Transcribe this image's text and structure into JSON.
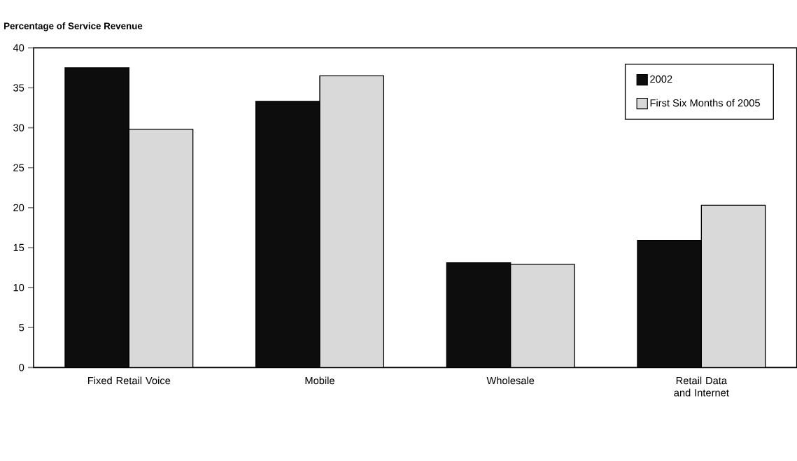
{
  "chart_data": {
    "type": "bar",
    "ylabel": "Percentage of Service Revenue",
    "categories": [
      "Fixed Retail Voice",
      "Mobile",
      "Wholesale",
      "Retail Data and Internet"
    ],
    "series": [
      {
        "name": "2002",
        "color": "#0d0d0d",
        "values": [
          37.5,
          33.3,
          13.1,
          15.9
        ]
      },
      {
        "name": "First Six Months of 2005",
        "color": "#d9d9d9",
        "values": [
          29.8,
          36.5,
          12.9,
          20.3
        ]
      }
    ],
    "ylim": [
      0,
      40
    ],
    "yticks": [
      0,
      5,
      10,
      15,
      20,
      25,
      30,
      35,
      40
    ],
    "legend": "top right"
  }
}
